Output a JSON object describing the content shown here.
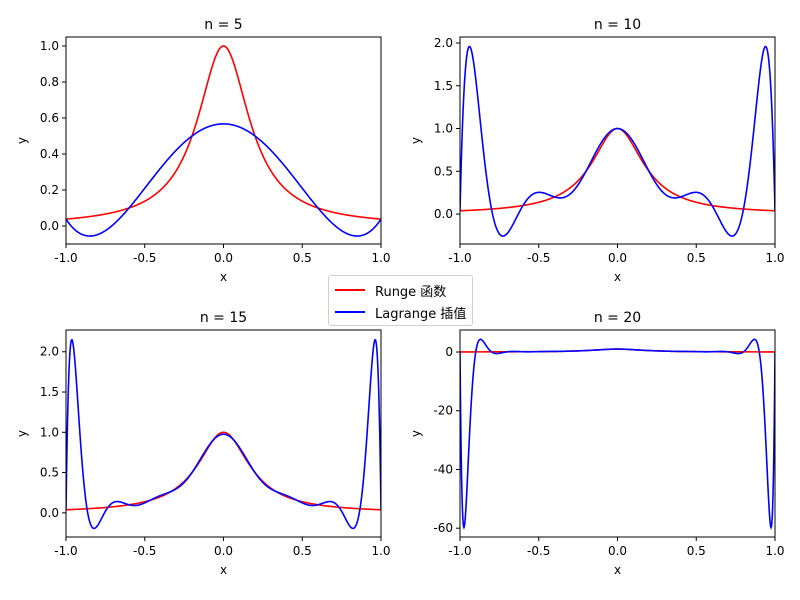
{
  "chart_data": {
    "type": "line",
    "function": "1/(1+25x^2)",
    "interpolation": "Lagrange, n+1 equally spaced nodes on [-1, 1]",
    "legend": {
      "placement": "center",
      "entries": [
        {
          "label": "Runge 函数",
          "color": "#ff0000"
        },
        {
          "label": "Lagrange 插值",
          "color": "#0000ff"
        }
      ]
    },
    "subplots": [
      {
        "title": "n = 5",
        "n": 5,
        "xlabel": "x",
        "ylabel": "y",
        "xlim": [
          -1,
          1
        ],
        "ylim": [
          -0.1,
          1.05
        ],
        "xticks": [
          "-1.0",
          "-0.5",
          "0.0",
          "0.5",
          "1.0"
        ],
        "xtick_values": [
          -1,
          -0.5,
          0,
          0.5,
          1
        ],
        "yticks": [
          "0.0",
          "0.2",
          "0.4",
          "0.6",
          "0.8",
          "1.0"
        ],
        "ytick_values": [
          0,
          0.2,
          0.4,
          0.6,
          0.8,
          1.0
        ]
      },
      {
        "title": "n = 10",
        "n": 10,
        "xlabel": "x",
        "ylabel": "y",
        "xlim": [
          -1,
          1
        ],
        "ylim": [
          -0.35,
          2.07
        ],
        "xticks": [
          "-1.0",
          "-0.5",
          "0.0",
          "0.5",
          "1.0"
        ],
        "xtick_values": [
          -1,
          -0.5,
          0,
          0.5,
          1
        ],
        "yticks": [
          "0.0",
          "0.5",
          "1.0",
          "1.5",
          "2.0"
        ],
        "ytick_values": [
          0,
          0.5,
          1,
          1.5,
          2
        ]
      },
      {
        "title": "n = 15",
        "n": 15,
        "xlabel": "x",
        "ylabel": "y",
        "xlim": [
          -1,
          1
        ],
        "ylim": [
          -0.3,
          2.27
        ],
        "xticks": [
          "-1.0",
          "-0.5",
          "0.0",
          "0.5",
          "1.0"
        ],
        "xtick_values": [
          -1,
          -0.5,
          0,
          0.5,
          1
        ],
        "yticks": [
          "0.0",
          "0.5",
          "1.0",
          "1.5",
          "2.0"
        ],
        "ytick_values": [
          0,
          0.5,
          1,
          1.5,
          2
        ]
      },
      {
        "title": "n = 20",
        "n": 20,
        "xlabel": "x",
        "ylabel": "y",
        "xlim": [
          -1,
          1
        ],
        "ylim": [
          -63,
          7.5
        ],
        "xticks": [
          "-1.0",
          "-0.5",
          "0.0",
          "0.5",
          "1.0"
        ],
        "xtick_values": [
          -1,
          -0.5,
          0,
          0.5,
          1
        ],
        "yticks": [
          "-60",
          "-40",
          "-20",
          "0"
        ],
        "ytick_values": [
          -60,
          -40,
          -20,
          0
        ]
      }
    ]
  }
}
